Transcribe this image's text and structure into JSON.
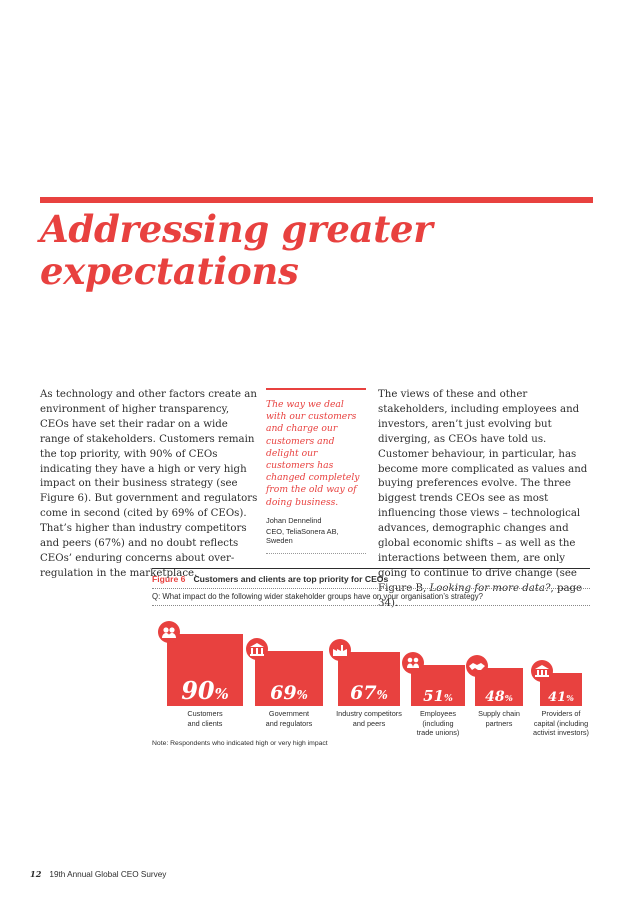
{
  "title": "Addressing greater expectations",
  "col1_text": "As technology and other factors create an environment of higher transparency, CEOs have set their radar on a wide range of stakeholders. Customers remain the top priority, with 90% of CEOs indicating they have a high or very high impact on their business strategy (see Figure 6). But government and regulators come in second (cited by 69% of CEOs). That’s higher than industry competitors and peers (67%) and no doubt reflects CEOs’ enduring concerns about over-regulation in the marketplace.",
  "quote": {
    "text": "The way we deal with our customers and charge our customers and delight our customers has changed completely from the old way of doing business.",
    "name": "Johan Dennelind",
    "role": "CEO, TeliaSonera AB, Sweden"
  },
  "col3": {
    "text": "The views of these and other stakeholders, including employees and investors, aren’t just evolving but diverging, as CEOs have told us. Customer behaviour, in particular, has become more complicated as values and buying preferences evolve. The three biggest trends CEOs see as most influencing those views – technological advances, demographic changes and global economic shifts – as well as the interactions between them, are only going to continue to drive change (see Figure B, ",
    "link": "Looking for more data?",
    "tail": ", page 34)."
  },
  "figure": {
    "label": "Figure 6",
    "title": "Customers and clients are top priority for CEOs",
    "question": "Q: What impact do the following wider stakeholder groups have on your organisation’s strategy?",
    "note": "Note: Respondents who indicated high or very high impact"
  },
  "chart_data": {
    "type": "bar",
    "categories": [
      "Customers and clients",
      "Government and regulators",
      "Industry competitors and peers",
      "Employees (including trade unions)",
      "Supply chain partners",
      "Providers of capital (including activist investors)"
    ],
    "category_lines": [
      [
        "Customers",
        "and clients"
      ],
      [
        "Government",
        "and regulators"
      ],
      [
        "Industry competitors",
        "and peers"
      ],
      [
        "Employees",
        "(including",
        "trade unions)"
      ],
      [
        "Supply chain",
        "partners"
      ],
      [
        "Providers of",
        "capital (including",
        "activist investors)"
      ]
    ],
    "values": [
      90,
      69,
      67,
      51,
      48,
      41
    ],
    "value_labels": [
      "90%",
      "69%",
      "67%",
      "51%",
      "48%",
      "41%"
    ],
    "icons": [
      "customers-icon",
      "government-building-icon",
      "factory-icon",
      "employees-icon",
      "handshake-icon",
      "bank-icon"
    ],
    "unit": "%",
    "color": "#e8413f"
  },
  "footer": {
    "page_number": "12",
    "text": "19th Annual Global CEO Survey"
  }
}
